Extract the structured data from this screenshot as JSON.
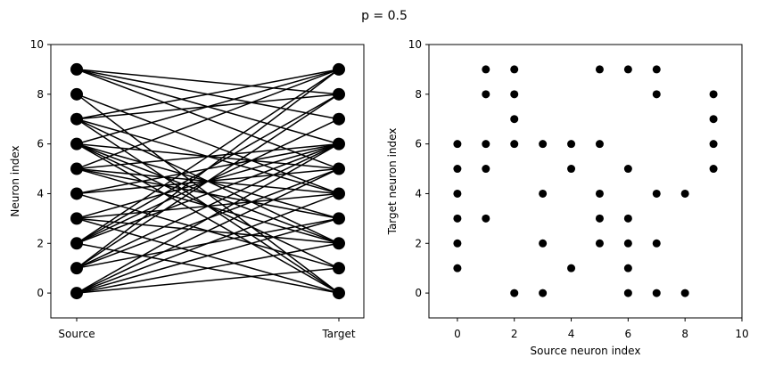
{
  "chart_data": [
    {
      "type": "scatter",
      "suptitle": "p = 0.5",
      "title": "",
      "xlabel": "",
      "ylabel": "Neuron index",
      "xticklabels": [
        "Source",
        "Target"
      ],
      "yticks": [
        0,
        2,
        4,
        6,
        8,
        10
      ],
      "ylim": [
        -1,
        10
      ],
      "grid": false,
      "connections": [
        [
          0,
          1
        ],
        [
          0,
          2
        ],
        [
          0,
          3
        ],
        [
          0,
          4
        ],
        [
          0,
          5
        ],
        [
          0,
          6
        ],
        [
          1,
          3
        ],
        [
          1,
          5
        ],
        [
          1,
          6
        ],
        [
          1,
          8
        ],
        [
          1,
          9
        ],
        [
          2,
          0
        ],
        [
          2,
          6
        ],
        [
          2,
          7
        ],
        [
          2,
          8
        ],
        [
          2,
          9
        ],
        [
          3,
          0
        ],
        [
          3,
          2
        ],
        [
          3,
          4
        ],
        [
          3,
          6
        ],
        [
          4,
          1
        ],
        [
          4,
          5
        ],
        [
          4,
          6
        ],
        [
          5,
          2
        ],
        [
          5,
          3
        ],
        [
          5,
          4
        ],
        [
          5,
          6
        ],
        [
          5,
          9
        ],
        [
          6,
          0
        ],
        [
          6,
          1
        ],
        [
          6,
          2
        ],
        [
          6,
          3
        ],
        [
          6,
          5
        ],
        [
          6,
          9
        ],
        [
          7,
          0
        ],
        [
          7,
          2
        ],
        [
          7,
          4
        ],
        [
          7,
          8
        ],
        [
          7,
          9
        ],
        [
          8,
          0
        ],
        [
          8,
          4
        ],
        [
          9,
          5
        ],
        [
          9,
          6
        ],
        [
          9,
          7
        ],
        [
          9,
          8
        ]
      ]
    },
    {
      "type": "scatter",
      "title": "",
      "xlabel": "Source neuron index",
      "ylabel": "Target neuron index",
      "xticks": [
        0,
        2,
        4,
        6,
        8,
        10
      ],
      "yticks": [
        0,
        2,
        4,
        6,
        8,
        10
      ],
      "xlim": [
        -1,
        10
      ],
      "ylim": [
        -1,
        10
      ],
      "grid": false,
      "source": "connections of first panel (x = source, y = target)"
    }
  ]
}
